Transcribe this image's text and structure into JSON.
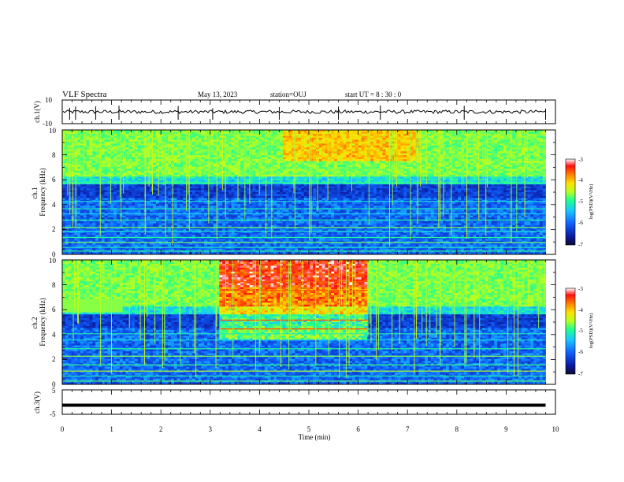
{
  "header": {
    "title": "VLF Spectra",
    "date": "May 13, 2023",
    "station": "station=OUJ",
    "start": "start UT =  8 : 30 : 0"
  },
  "colors": {
    "colormap": [
      "#0c0a32",
      "#0a1aa0",
      "#1060ff",
      "#18c8ff",
      "#20ff90",
      "#b8ff20",
      "#ffe000",
      "#ff8000",
      "#ff1010",
      "#ffffff"
    ]
  },
  "chart_data": [
    {
      "type": "line",
      "panel": "ch1-waveform",
      "ylabel": "ch.1(V)",
      "ylim": [
        -10,
        10
      ],
      "ytick_labels": [
        "10",
        "-10"
      ],
      "series": [
        {
          "x": [
            0,
            9.8
          ],
          "y": [
            0,
            0
          ]
        }
      ]
    },
    {
      "type": "heatmap",
      "panel": "ch1-spectrogram",
      "ylabel": "ch.1\nFrequency (kHz)",
      "ylim": [
        0,
        10
      ],
      "ytick_labels": [
        "0",
        "2",
        "4",
        "6",
        "8",
        "10"
      ],
      "colorbar": {
        "label": "log(PSD)(V²/Hz)",
        "range": [
          -7,
          -3
        ],
        "tick_labels": [
          "-3",
          "-4",
          "-5",
          "-6",
          "-7"
        ]
      }
    },
    {
      "type": "heatmap",
      "panel": "ch2-spectrogram",
      "ylabel": "ch.2\nFrequency (kHz)",
      "ylim": [
        0,
        10
      ],
      "ytick_labels": [
        "0",
        "2",
        "4",
        "6",
        "8",
        "10"
      ],
      "colorbar": {
        "label": "log(PSD)(V²/Hz)",
        "range": [
          -7,
          -3
        ],
        "tick_labels": [
          "-3",
          "-4",
          "-5",
          "-6",
          "-7"
        ]
      }
    },
    {
      "type": "line",
      "panel": "ch3-waveform",
      "ylabel": "ch.3(V)",
      "ylim": [
        -5,
        5
      ],
      "ytick_labels": [
        "5",
        "-5"
      ],
      "series": [
        {
          "x": [
            0,
            9.8
          ],
          "y": [
            -1.3,
            -1.3
          ]
        }
      ]
    }
  ],
  "xaxis": {
    "label": "Time (min)",
    "range": [
      0,
      10
    ],
    "tick_labels": [
      "0",
      "1",
      "2",
      "3",
      "4",
      "5",
      "6",
      "7",
      "8",
      "9",
      "10"
    ]
  }
}
